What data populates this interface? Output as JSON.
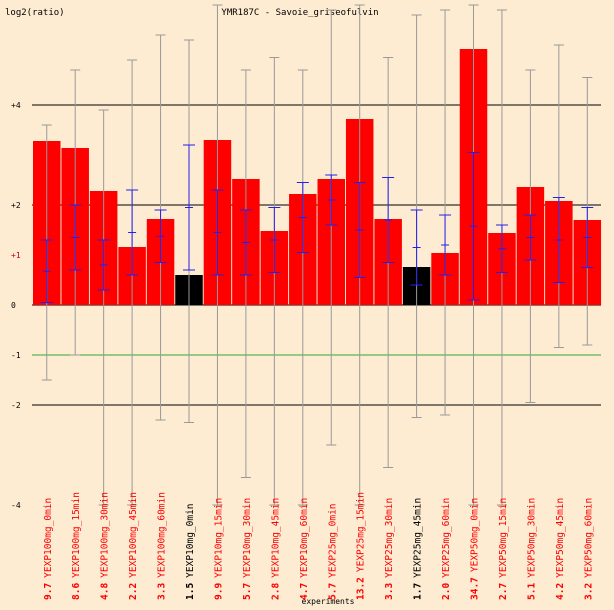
{
  "chart_data": {
    "type": "bar",
    "title": "YMR187C - Savoie_griseofulvin",
    "ylabel": "log2(ratio)",
    "xlabel": "experiments",
    "ylim": [
      -4,
      6
    ],
    "y_ticks": [
      {
        "value": 4,
        "label": "+4"
      },
      {
        "value": 2,
        "label": "+2"
      },
      {
        "value": 1,
        "label": "+1"
      },
      {
        "value": 0,
        "label": "0"
      },
      {
        "value": -1,
        "label": "-1"
      },
      {
        "value": -2,
        "label": "-2"
      },
      {
        "value": -4,
        "label": "-4"
      }
    ],
    "reference_lines": [
      {
        "value": 4,
        "color": "#000000"
      },
      {
        "value": 2,
        "color": "#000000"
      },
      {
        "value": 0,
        "color": "#000000"
      },
      {
        "value": -2,
        "color": "#000000"
      },
      {
        "value": -1,
        "color": "#2ea82e"
      }
    ],
    "colors": {
      "background": "#fdebd2",
      "bar_up": "#ff0000",
      "bar_ref": "#000000",
      "whisker": "#999999",
      "error": "#2222ee"
    },
    "categories": [
      {
        "label": "YEXP100mg_0min",
        "count": "9.7",
        "value": 3.28,
        "highlight": false,
        "range": [
          -1.5,
          3.6
        ],
        "err": [
          0.05,
          1.3
        ]
      },
      {
        "label": "YEXP100mg_15min",
        "count": "8.6",
        "value": 3.14,
        "highlight": false,
        "range": [
          -1.0,
          4.7
        ],
        "err": [
          0.7,
          2.0
        ]
      },
      {
        "label": "YEXP100mg_30min",
        "count": "4.8",
        "value": 2.28,
        "highlight": false,
        "range": [
          -4.0,
          3.9
        ],
        "err": [
          0.3,
          1.3
        ]
      },
      {
        "label": "YEXP100mg_45min",
        "count": "2.2",
        "value": 1.16,
        "highlight": false,
        "range": [
          -4.0,
          4.9
        ],
        "err": [
          0.6,
          2.3
        ]
      },
      {
        "label": "YEXP100mg_60min",
        "count": "3.3",
        "value": 1.72,
        "highlight": false,
        "range": [
          -2.3,
          5.4
        ],
        "err": [
          0.85,
          1.9
        ]
      },
      {
        "label": "YEXP10mg_0min",
        "count": "1.5",
        "value": 0.6,
        "highlight": true,
        "range": [
          -2.35,
          5.3
        ],
        "err": [
          0.7,
          3.2
        ]
      },
      {
        "label": "YEXP10mg_15min",
        "count": "9.9",
        "value": 3.3,
        "highlight": false,
        "range": [
          -4.0,
          6.0
        ],
        "err": [
          0.6,
          2.3
        ]
      },
      {
        "label": "YEXP10mg_30min",
        "count": "5.7",
        "value": 2.52,
        "highlight": false,
        "range": [
          -3.45,
          4.7
        ],
        "err": [
          0.6,
          1.9
        ]
      },
      {
        "label": "YEXP10mg_45min",
        "count": "2.8",
        "value": 1.48,
        "highlight": false,
        "range": [
          -4.0,
          4.95
        ],
        "err": [
          0.65,
          1.95
        ]
      },
      {
        "label": "YEXP10mg_60min",
        "count": "4.7",
        "value": 2.22,
        "highlight": false,
        "range": [
          -4.0,
          4.7
        ],
        "err": [
          1.05,
          2.45
        ]
      },
      {
        "label": "YEXP25mg_0min",
        "count": "5.7",
        "value": 2.52,
        "highlight": false,
        "range": [
          -2.8,
          5.9
        ],
        "err": [
          1.6,
          2.6
        ]
      },
      {
        "label": "YEXP25mg_15min",
        "count": "13.2",
        "value": 3.72,
        "highlight": false,
        "range": [
          -4.0,
          6.0
        ],
        "err": [
          0.55,
          2.45
        ]
      },
      {
        "label": "YEXP25mg_30min",
        "count": "3.3",
        "value": 1.72,
        "highlight": false,
        "range": [
          -3.25,
          4.95
        ],
        "err": [
          0.85,
          2.55
        ]
      },
      {
        "label": "YEXP25mg_45min",
        "count": "1.7",
        "value": 0.76,
        "highlight": true,
        "range": [
          -2.25,
          5.8
        ],
        "err": [
          0.4,
          1.9
        ]
      },
      {
        "label": "YEXP25mg_60min",
        "count": "2.0",
        "value": 1.04,
        "highlight": false,
        "range": [
          -2.2,
          5.9
        ],
        "err": [
          0.6,
          1.8
        ]
      },
      {
        "label": "YEXP50mg_0min",
        "count": "34.7",
        "value": 5.12,
        "highlight": false,
        "range": [
          -4.0,
          6.0
        ],
        "err": [
          0.1,
          3.05
        ]
      },
      {
        "label": "YEXP50mg_15min",
        "count": "2.7",
        "value": 1.44,
        "highlight": false,
        "range": [
          -4.0,
          5.9
        ],
        "err": [
          0.65,
          1.6
        ]
      },
      {
        "label": "YEXP50mg_30min",
        "count": "5.1",
        "value": 2.36,
        "highlight": false,
        "range": [
          -1.95,
          4.7
        ],
        "err": [
          0.9,
          1.8
        ]
      },
      {
        "label": "YEXP50mg_45min",
        "count": "4.2",
        "value": 2.08,
        "highlight": false,
        "range": [
          -0.85,
          5.2
        ],
        "err": [
          0.45,
          2.15
        ]
      },
      {
        "label": "YEXP50mg_60min",
        "count": "3.2",
        "value": 1.7,
        "highlight": false,
        "range": [
          -0.8,
          4.55
        ],
        "err": [
          0.75,
          1.95
        ]
      }
    ]
  }
}
